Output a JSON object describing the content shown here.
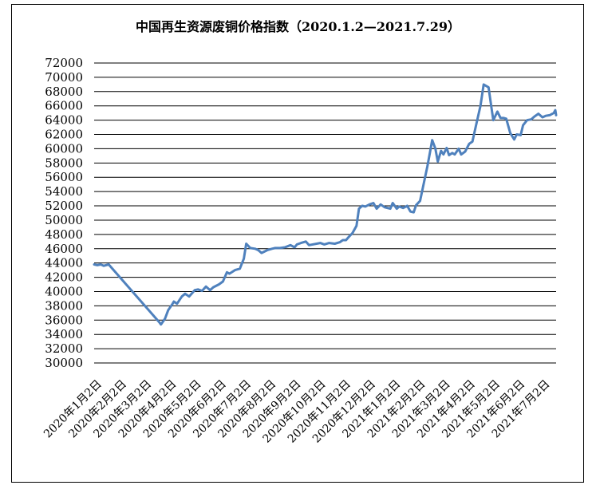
{
  "chart_data": {
    "type": "line",
    "title": "中国再生资源废铜价格指数（2020.1.2—2021.7.29）",
    "xlabel": "",
    "ylabel": "",
    "ylim": [
      30000,
      72000
    ],
    "ytick_step": 2000,
    "ytick_labels": [
      "72000",
      "70000",
      "68000",
      "66000",
      "64000",
      "62000",
      "60000",
      "58000",
      "56000",
      "54000",
      "52000",
      "50000",
      "48000",
      "46000",
      "44000",
      "42000",
      "40000",
      "38000",
      "36000",
      "34000",
      "32000",
      "30000"
    ],
    "xtick_labels": [
      "2020年1月2日",
      "2020年2月2日",
      "2020年3月2日",
      "2020年4月2日",
      "2020年5月2日",
      "2020年6月2日",
      "2020年7月2日",
      "2020年8月2日",
      "2020年9月2日",
      "2020年10月2日",
      "2020年11月2日",
      "2020年12月2日",
      "2021年1月2日",
      "2021年2月2日",
      "2021年3月2日",
      "2021年4月2日",
      "2021年5月2日",
      "2021年6月2日",
      "2021年7月2日"
    ],
    "grid": true,
    "legend": "none",
    "line_color": "#4f81bd",
    "series": [
      {
        "x": [
          "2020-01-02",
          "2020-01-06",
          "2020-01-10",
          "2020-01-14",
          "2020-01-20",
          "2020-03-23",
          "2020-03-25",
          "2020-03-30",
          "2020-04-03",
          "2020-04-08",
          "2020-04-10",
          "2020-04-14",
          "2020-04-20",
          "2020-04-24",
          "2020-04-29",
          "2020-05-06",
          "2020-05-10",
          "2020-05-15",
          "2020-05-20",
          "2020-05-25",
          "2020-05-29",
          "2020-06-05",
          "2020-06-10",
          "2020-06-15",
          "2020-06-18",
          "2020-06-25",
          "2020-07-01",
          "2020-07-06",
          "2020-07-09",
          "2020-07-14",
          "2020-07-20",
          "2020-07-24",
          "2020-07-28",
          "2020-08-04",
          "2020-08-07",
          "2020-08-10",
          "2020-08-14",
          "2020-08-20",
          "2020-08-26",
          "2020-09-02",
          "2020-09-07",
          "2020-09-10",
          "2020-09-15",
          "2020-09-21",
          "2020-09-25",
          "2020-10-09",
          "2020-10-14",
          "2020-10-20",
          "2020-10-27",
          "2020-11-02",
          "2020-11-06",
          "2020-11-10",
          "2020-11-13",
          "2020-11-18",
          "2020-11-23",
          "2020-11-26",
          "2020-11-30",
          "2020-12-04",
          "2020-12-09",
          "2020-12-14",
          "2020-12-18",
          "2020-12-23",
          "2020-12-28",
          "2021-01-04",
          "2021-01-07",
          "2021-01-12",
          "2021-01-15",
          "2021-01-20",
          "2021-01-25",
          "2021-01-29",
          "2021-02-02",
          "2021-02-05",
          "2021-02-10",
          "2021-02-19",
          "2021-02-22",
          "2021-02-25",
          "2021-03-01",
          "2021-03-04",
          "2021-03-08",
          "2021-03-11",
          "2021-03-15",
          "2021-03-18",
          "2021-03-22",
          "2021-03-25",
          "2021-03-30",
          "2021-04-02",
          "2021-04-07",
          "2021-04-12",
          "2021-04-16",
          "2021-04-21",
          "2021-04-26",
          "2021-04-30",
          "2021-05-06",
          "2021-05-10",
          "2021-05-12",
          "2021-05-17",
          "2021-05-21",
          "2021-05-25",
          "2021-05-28",
          "2021-06-02",
          "2021-06-07",
          "2021-06-10",
          "2021-06-15",
          "2021-06-18",
          "2021-06-23",
          "2021-06-28",
          "2021-07-02",
          "2021-07-07",
          "2021-07-12",
          "2021-07-16",
          "2021-07-21",
          "2021-07-26",
          "2021-07-28",
          "2021-07-29"
        ],
        "values": [
          43800,
          43700,
          43800,
          43600,
          43800,
          35700,
          35400,
          36200,
          37400,
          38200,
          38600,
          38300,
          39300,
          39700,
          39300,
          40200,
          40300,
          40100,
          40700,
          40200,
          40600,
          41000,
          41400,
          42700,
          42500,
          43000,
          43200,
          44600,
          46700,
          46100,
          46000,
          45800,
          45400,
          45800,
          45900,
          46000,
          46100,
          46100,
          46200,
          46500,
          46200,
          46600,
          46800,
          47000,
          46500,
          46800,
          46600,
          46800,
          46700,
          46900,
          47200,
          47200,
          47600,
          48200,
          49200,
          51600,
          52000,
          51900,
          52200,
          52400,
          51600,
          52200,
          51800,
          51600,
          52400,
          51600,
          51900,
          51700,
          52000,
          51200,
          51100,
          52100,
          52700,
          57500,
          59300,
          61200,
          60000,
          58200,
          59700,
          59200,
          60100,
          59100,
          59400,
          59200,
          60000,
          59200,
          59600,
          60700,
          61000,
          63500,
          66000,
          69000,
          68600,
          65500,
          64000,
          65200,
          64300,
          64300,
          64200,
          62200,
          61300,
          62000,
          61900,
          63300,
          64000,
          64100,
          64500,
          64900,
          64400,
          64600,
          64700,
          65000,
          65400,
          64700
        ]
      }
    ]
  }
}
